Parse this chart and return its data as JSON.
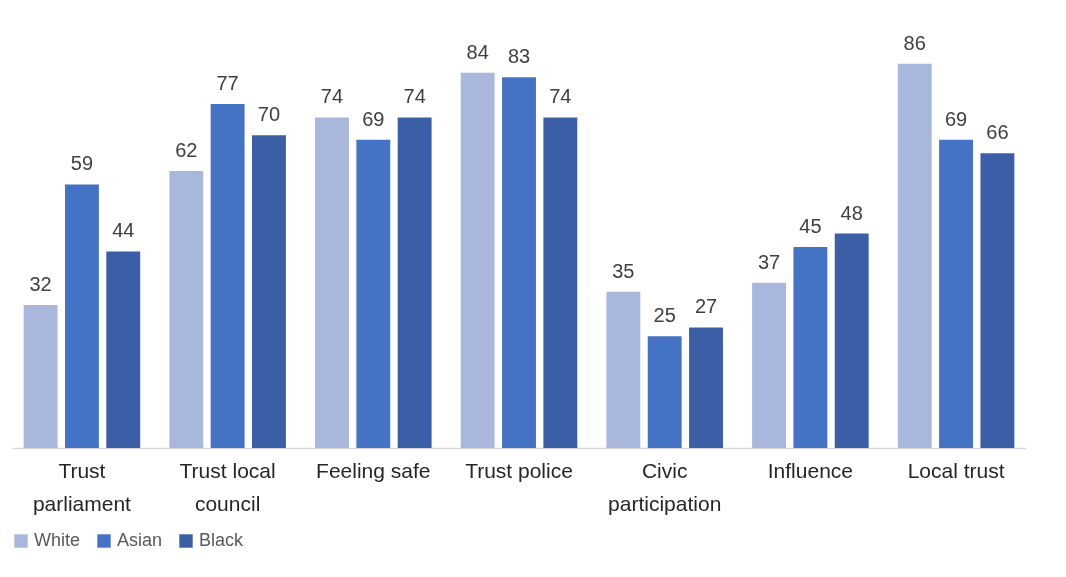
{
  "chart_data": {
    "type": "bar",
    "categories": [
      "Trust parliament",
      "Trust local council",
      "Feeling safe",
      "Trust police",
      "Civic participation",
      "Influence",
      "Local trust"
    ],
    "series": [
      {
        "name": "White",
        "color": "#a9b7dc",
        "values": [
          32,
          62,
          74,
          84,
          35,
          37,
          86
        ]
      },
      {
        "name": "Asian",
        "color": "#4472c4",
        "values": [
          59,
          77,
          69,
          83,
          25,
          45,
          69
        ]
      },
      {
        "name": "Black",
        "color": "#3a5fa6",
        "values": [
          44,
          70,
          74,
          74,
          27,
          48,
          66
        ]
      }
    ],
    "data_labels": true,
    "grid": false,
    "legend": "bottom"
  }
}
